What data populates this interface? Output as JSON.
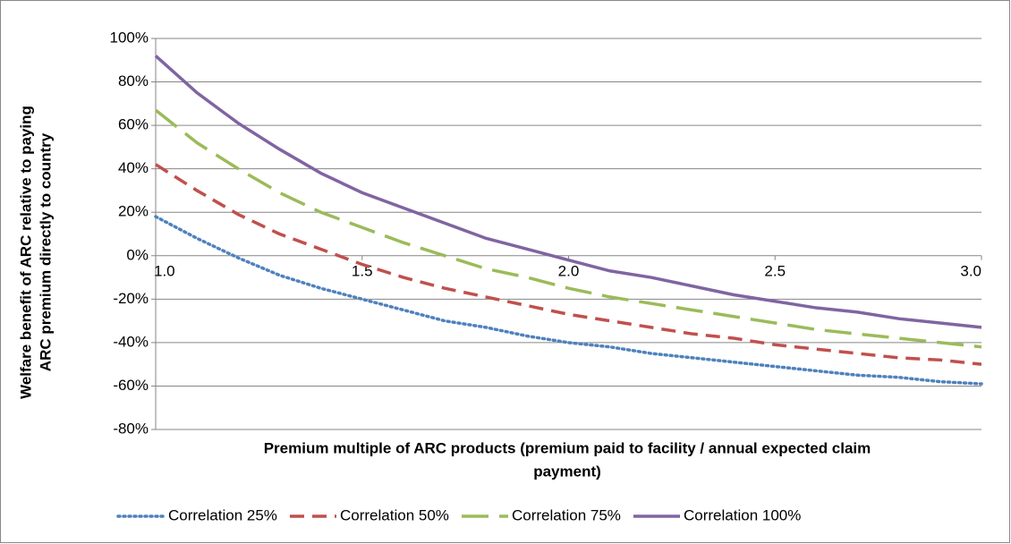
{
  "chart_data": {
    "type": "line",
    "xlabel": [
      "Premium multiple of ARC products (premium paid to facility / annual expected claim",
      "payment)"
    ],
    "ylabel": [
      "Welfare benefit of ARC relative to paying",
      "ARC premium directly to country"
    ],
    "x": [
      1.0,
      1.1,
      1.2,
      1.3,
      1.4,
      1.5,
      1.6,
      1.7,
      1.8,
      1.9,
      2.0,
      2.1,
      2.2,
      2.3,
      2.4,
      2.5,
      2.6,
      2.7,
      2.8,
      2.9,
      3.0
    ],
    "series": [
      {
        "name": "Correlation 25%",
        "color": "#4f81bd",
        "dash": "dotted",
        "values": [
          18,
          8,
          -1,
          -9,
          -15,
          -20,
          -25,
          -30,
          -33,
          -37,
          -40,
          -42,
          -45,
          -47,
          -49,
          -51,
          -53,
          -55,
          -56,
          -58,
          -59
        ]
      },
      {
        "name": "Correlation 50%",
        "color": "#c0504d",
        "dash": "dashed",
        "values": [
          42,
          30,
          19,
          10,
          3,
          -4,
          -10,
          -15,
          -19,
          -23,
          -27,
          -30,
          -33,
          -36,
          -38,
          -41,
          -43,
          -45,
          -47,
          -48,
          -50
        ]
      },
      {
        "name": "Correlation 75%",
        "color": "#9bbb59",
        "dash": "longdash",
        "values": [
          67,
          52,
          40,
          29,
          20,
          13,
          6,
          0,
          -6,
          -10,
          -15,
          -19,
          -22,
          -25,
          -28,
          -31,
          -34,
          -36,
          -38,
          -40,
          -42
        ]
      },
      {
        "name": "Correlation 100%",
        "color": "#8064a2",
        "dash": "solid",
        "values": [
          92,
          75,
          61,
          49,
          38,
          29,
          22,
          15,
          8,
          3,
          -2,
          -7,
          -10,
          -14,
          -18,
          -21,
          -24,
          -26,
          -29,
          -31,
          -33
        ]
      }
    ],
    "xlim": [
      1.0,
      3.0
    ],
    "xticks": [
      {
        "value": 1.0,
        "label": "1.0"
      },
      {
        "value": 1.5,
        "label": "1.5"
      },
      {
        "value": 2.0,
        "label": "2.0"
      },
      {
        "value": 2.5,
        "label": "2.5"
      },
      {
        "value": 3.0,
        "label": "3.0"
      }
    ],
    "ylim": [
      -80,
      100
    ],
    "yticks": [
      {
        "value": -80,
        "label": "-80%"
      },
      {
        "value": -60,
        "label": "-60%"
      },
      {
        "value": -40,
        "label": "-40%"
      },
      {
        "value": -20,
        "label": "-20%"
      },
      {
        "value": 0,
        "label": "0%"
      },
      {
        "value": 20,
        "label": "20%"
      },
      {
        "value": 40,
        "label": "40%"
      },
      {
        "value": 60,
        "label": "60%"
      },
      {
        "value": 80,
        "label": "80%"
      },
      {
        "value": 100,
        "label": "100%"
      }
    ],
    "grid": true,
    "legend": "bottom"
  }
}
